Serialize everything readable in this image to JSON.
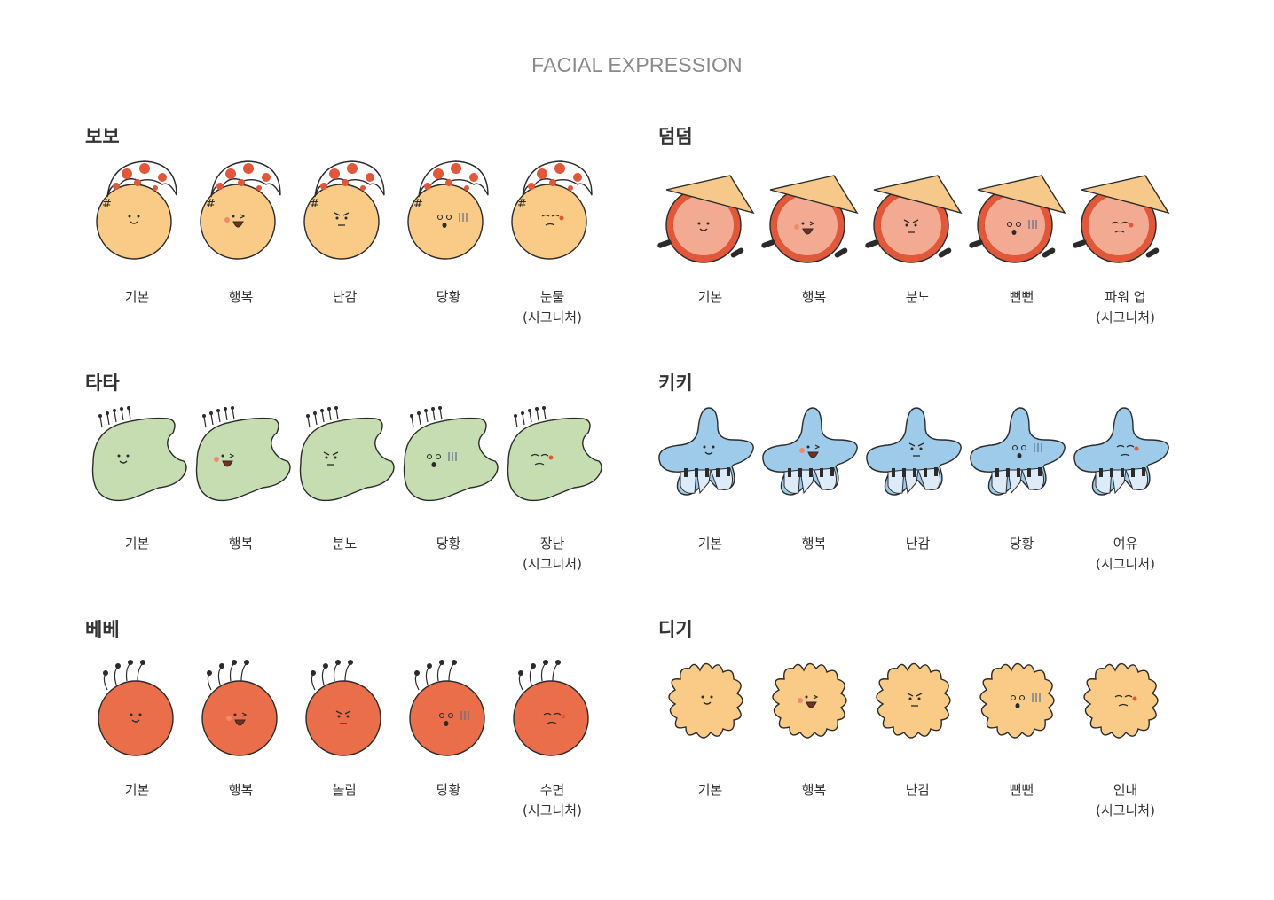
{
  "title": "FACIAL EXPRESSION",
  "characters": [
    {
      "id": "bobo",
      "name": "보보",
      "color": "#F9CB86",
      "outline": "#2b2b2b",
      "accessory": "mushroom-cap-hat",
      "expressions": [
        {
          "label": "기본",
          "sub": ""
        },
        {
          "label": "행복",
          "sub": ""
        },
        {
          "label": "난감",
          "sub": ""
        },
        {
          "label": "당황",
          "sub": ""
        },
        {
          "label": "눈물",
          "sub": "(시그니처)"
        }
      ]
    },
    {
      "id": "deomdeom",
      "name": "덤덤",
      "color": "#F2AA93",
      "ring": "#E0573A",
      "accessory": "conical-straw-hat",
      "expressions": [
        {
          "label": "기본",
          "sub": ""
        },
        {
          "label": "행복",
          "sub": ""
        },
        {
          "label": "분노",
          "sub": ""
        },
        {
          "label": "뻔뻔",
          "sub": ""
        },
        {
          "label": "파워 업",
          "sub": "(시그니처)"
        }
      ]
    },
    {
      "id": "tata",
      "name": "타타",
      "color": "#C6DDB2",
      "accessory": "antenna-row",
      "expressions": [
        {
          "label": "기본",
          "sub": ""
        },
        {
          "label": "행복",
          "sub": ""
        },
        {
          "label": "분노",
          "sub": ""
        },
        {
          "label": "당황",
          "sub": ""
        },
        {
          "label": "장난",
          "sub": "(시그니처)"
        }
      ]
    },
    {
      "id": "kiki",
      "name": "키키",
      "color": "#9FCBEB",
      "accessory": "piano-keys",
      "expressions": [
        {
          "label": "기본",
          "sub": ""
        },
        {
          "label": "행복",
          "sub": ""
        },
        {
          "label": "난감",
          "sub": ""
        },
        {
          "label": "당황",
          "sub": ""
        },
        {
          "label": "여유",
          "sub": "(시그니처)"
        }
      ]
    },
    {
      "id": "bebe",
      "name": "베베",
      "color": "#EB6E4B",
      "accessory": "dot-antennae",
      "expressions": [
        {
          "label": "기본",
          "sub": ""
        },
        {
          "label": "행복",
          "sub": ""
        },
        {
          "label": "놀람",
          "sub": ""
        },
        {
          "label": "당황",
          "sub": ""
        },
        {
          "label": "수면",
          "sub": "(시그니처)"
        }
      ]
    },
    {
      "id": "digi",
      "name": "디기",
      "color": "#F9CB86",
      "accessory": "none",
      "expressions": [
        {
          "label": "기본",
          "sub": ""
        },
        {
          "label": "행복",
          "sub": ""
        },
        {
          "label": "난감",
          "sub": ""
        },
        {
          "label": "뻔뻔",
          "sub": ""
        },
        {
          "label": "인내",
          "sub": "(시그니처)"
        }
      ]
    }
  ]
}
